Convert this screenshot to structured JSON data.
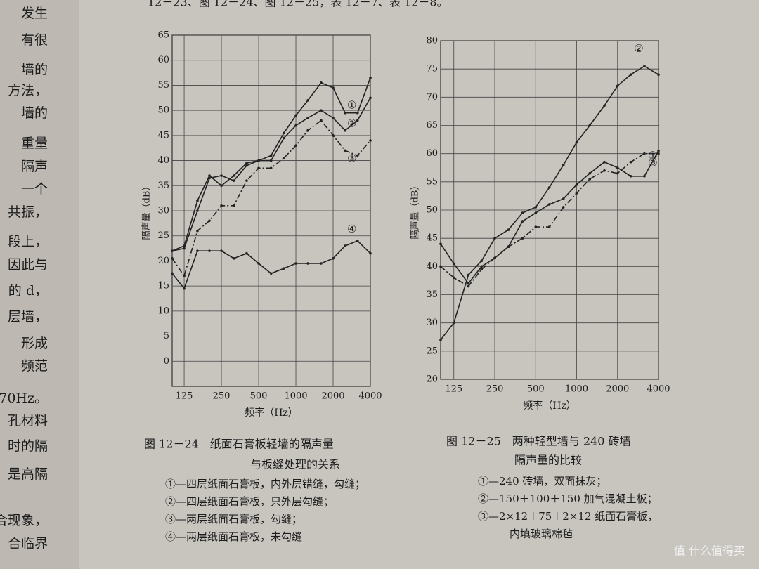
{
  "page": {
    "top_line": "12－23、图 12－24、图 12－25，表 12－7、表 12－8。",
    "margin_text": [
      "发生",
      "有很",
      "墙的",
      "方法，",
      "墙的",
      "重量",
      "隔声",
      "一个",
      "共振，",
      "段上，",
      "因此与",
      "的 d，",
      "层墙，",
      "形成",
      "频范",
      "70Hz。",
      "孔材料",
      "时的隔",
      "是高隔",
      "合现象，",
      "合临界"
    ],
    "watermark": "值 什么值得买"
  },
  "chart_data": [
    {
      "type": "line",
      "xlabel": "频率（Hz）",
      "ylabel": "隔声量（dB）",
      "xscale": "log",
      "grid": true,
      "caption": [
        "图 12－24　纸面石膏板轻墙的隔声量",
        "与板缝处理的关系"
      ],
      "notes": [
        "①—四层纸面石膏板，内外层错缝，勾缝；",
        "②—四层纸面石膏板，只外层勾缝；",
        "③—两层纸面石膏板，勾缝；",
        "④—两层纸面石膏板，未勾缝"
      ],
      "x": [
        100,
        125,
        160,
        200,
        250,
        315,
        400,
        500,
        630,
        800,
        1000,
        1250,
        1600,
        2000,
        2500,
        3150,
        4000
      ],
      "xlim": [
        100,
        4000
      ],
      "xticks": [
        125,
        250,
        500,
        1000,
        2000,
        4000
      ],
      "ylim": [
        -5,
        65
      ],
      "yticks": [
        0,
        5,
        10,
        15,
        20,
        25,
        30,
        35,
        40,
        45,
        50,
        55,
        60,
        65
      ],
      "series": [
        {
          "name": "①",
          "color": "#222222",
          "style": "solid",
          "values": [
            22,
            23,
            32,
            37,
            35,
            37,
            39.5,
            40,
            41,
            45.5,
            49,
            52,
            55.5,
            54.5,
            49.5,
            49.5,
            56.5
          ]
        },
        {
          "name": "②",
          "color": "#222222",
          "style": "solid",
          "values": [
            22,
            22.5,
            30,
            36.5,
            37,
            36,
            39,
            40,
            40,
            44.5,
            47,
            48.5,
            50,
            48.5,
            46,
            48,
            52.5
          ]
        },
        {
          "name": "③",
          "color": "#222222",
          "style": "dashdot",
          "values": [
            20.5,
            17,
            26,
            28,
            31,
            31,
            36,
            38.5,
            38.5,
            40.5,
            43,
            46,
            48,
            45,
            42,
            41,
            44
          ]
        },
        {
          "name": "④",
          "color": "#222222",
          "style": "solid",
          "values": [
            17.5,
            14.5,
            22,
            22,
            22,
            20.5,
            21.5,
            19.5,
            17.5,
            18.5,
            19.5,
            19.5,
            19.5,
            20.5,
            23,
            24,
            21.5
          ]
        }
      ]
    },
    {
      "type": "line",
      "xlabel": "频率（Hz）",
      "ylabel": "隔声量（dB）",
      "xscale": "log",
      "grid": true,
      "caption": [
        "图 12－25　两种轻型墙与 240 砖墙",
        "隔声量的比较"
      ],
      "notes": [
        "①—240 砖墙，双面抹灰；",
        "②—150＋100＋150 加气混凝土板；",
        "③—2×12＋75＋2×12 纸面石膏板，",
        "内填玻璃棉毡"
      ],
      "x": [
        100,
        125,
        160,
        200,
        250,
        315,
        400,
        500,
        630,
        800,
        1000,
        1250,
        1600,
        2000,
        2500,
        3150,
        4000
      ],
      "xlim": [
        100,
        4000
      ],
      "xticks": [
        125,
        250,
        500,
        1000,
        2000,
        4000
      ],
      "ylim": [
        20,
        80
      ],
      "yticks": [
        20,
        25,
        30,
        35,
        40,
        45,
        50,
        55,
        60,
        65,
        70,
        75,
        80
      ],
      "series": [
        {
          "name": "①",
          "color": "#222222",
          "style": "solid",
          "values": [
            44,
            40.5,
            37,
            40,
            41.5,
            43.5,
            48,
            49.5,
            51,
            52,
            54.5,
            56.5,
            58.5,
            57.5,
            56,
            56,
            60.5
          ]
        },
        {
          "name": "②",
          "color": "#222222",
          "style": "solid",
          "values": [
            27,
            30,
            38.5,
            41,
            45,
            46.5,
            49.5,
            50.5,
            54,
            58,
            62,
            65,
            68.5,
            72,
            74,
            75.5,
            74
          ]
        },
        {
          "name": "③",
          "color": "#222222",
          "style": "dashdot",
          "values": [
            40,
            38,
            36.5,
            39.5,
            41.5,
            43.5,
            45,
            47,
            47,
            50.5,
            53,
            55.5,
            57,
            56.5,
            58.5,
            60,
            60
          ]
        }
      ]
    }
  ]
}
